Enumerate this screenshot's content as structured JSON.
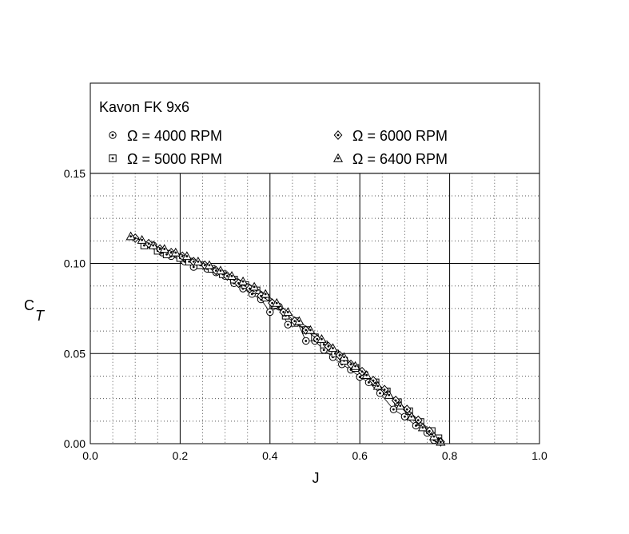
{
  "chart_data": {
    "type": "scatter",
    "legend_title": "Kavon FK 9x6",
    "legend_placement": "top",
    "xlabel": "J",
    "ylabel_main": "C",
    "ylabel_sub": "T",
    "xlim": [
      0.0,
      1.0
    ],
    "ylim": [
      0.0,
      0.2
    ],
    "x_ticks": [
      "0.0",
      "0.2",
      "0.4",
      "0.6",
      "0.8",
      "1.0"
    ],
    "y_ticks": [
      "0.00",
      "0.05",
      "0.10",
      "0.15"
    ],
    "grid": true,
    "series": [
      {
        "name": "Ω = 4000 RPM",
        "marker": "circle-dot",
        "x": [
          0.14,
          0.16,
          0.18,
          0.21,
          0.23,
          0.26,
          0.28,
          0.3,
          0.32,
          0.34,
          0.36,
          0.38,
          0.4,
          0.42,
          0.44,
          0.46,
          0.48,
          0.5,
          0.52,
          0.54,
          0.56,
          0.58,
          0.6,
          0.62,
          0.645,
          0.675,
          0.7,
          0.725,
          0.75,
          0.765
        ],
        "y": [
          0.11,
          0.106,
          0.104,
          0.101,
          0.098,
          0.097,
          0.095,
          0.093,
          0.089,
          0.086,
          0.083,
          0.08,
          0.073,
          0.076,
          0.066,
          0.068,
          0.057,
          0.057,
          0.052,
          0.048,
          0.044,
          0.041,
          0.037,
          0.034,
          0.028,
          0.019,
          0.015,
          0.01,
          0.006,
          0.002
        ]
      },
      {
        "name": "Ω = 5000 RPM",
        "marker": "square-dot",
        "x": [
          0.12,
          0.15,
          0.17,
          0.2,
          0.22,
          0.245,
          0.27,
          0.295,
          0.32,
          0.345,
          0.37,
          0.39,
          0.41,
          0.435,
          0.455,
          0.48,
          0.5,
          0.52,
          0.545,
          0.565,
          0.59,
          0.61,
          0.635,
          0.66,
          0.685,
          0.71,
          0.735,
          0.76,
          0.775
        ],
        "y": [
          0.11,
          0.107,
          0.105,
          0.103,
          0.101,
          0.099,
          0.097,
          0.094,
          0.091,
          0.088,
          0.085,
          0.081,
          0.077,
          0.071,
          0.067,
          0.063,
          0.059,
          0.055,
          0.05,
          0.046,
          0.042,
          0.038,
          0.034,
          0.029,
          0.023,
          0.018,
          0.012,
          0.007,
          0.003
        ]
      },
      {
        "name": "Ω = 6000 RPM",
        "marker": "diamond-dot",
        "x": [
          0.1,
          0.13,
          0.155,
          0.18,
          0.205,
          0.23,
          0.255,
          0.28,
          0.305,
          0.33,
          0.355,
          0.38,
          0.405,
          0.43,
          0.455,
          0.48,
          0.505,
          0.53,
          0.555,
          0.58,
          0.605,
          0.63,
          0.655,
          0.68,
          0.705,
          0.73,
          0.755,
          0.78
        ],
        "y": [
          0.114,
          0.111,
          0.108,
          0.106,
          0.104,
          0.101,
          0.099,
          0.096,
          0.093,
          0.089,
          0.086,
          0.082,
          0.078,
          0.073,
          0.068,
          0.063,
          0.058,
          0.054,
          0.049,
          0.044,
          0.04,
          0.035,
          0.03,
          0.024,
          0.019,
          0.013,
          0.007,
          0.001
        ]
      },
      {
        "name": "Ω = 6400 RPM",
        "marker": "triangle-dot",
        "x": [
          0.09,
          0.115,
          0.14,
          0.165,
          0.19,
          0.215,
          0.24,
          0.265,
          0.29,
          0.315,
          0.34,
          0.365,
          0.39,
          0.415,
          0.44,
          0.465,
          0.49,
          0.515,
          0.54,
          0.565,
          0.59,
          0.615,
          0.64,
          0.665,
          0.69,
          0.715,
          0.74,
          0.765,
          0.78
        ],
        "y": [
          0.115,
          0.113,
          0.11,
          0.108,
          0.106,
          0.104,
          0.101,
          0.099,
          0.096,
          0.093,
          0.09,
          0.087,
          0.083,
          0.078,
          0.073,
          0.068,
          0.063,
          0.058,
          0.053,
          0.048,
          0.043,
          0.038,
          0.032,
          0.027,
          0.021,
          0.015,
          0.009,
          0.004,
          0.001
        ]
      }
    ]
  }
}
